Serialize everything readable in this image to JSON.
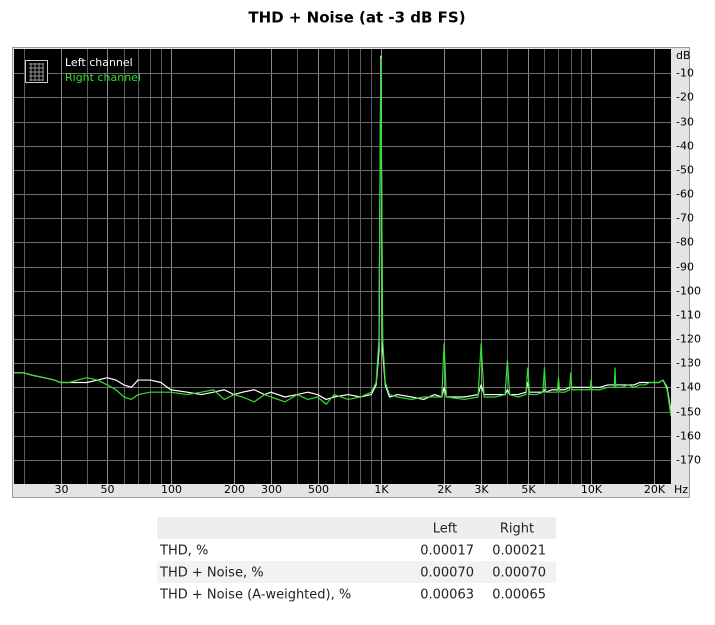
{
  "chart_data": {
    "type": "line",
    "title": "THD + Noise (at -3 dB FS)",
    "x_label": "Hz",
    "y_label": "dB",
    "log_x": true,
    "grid": true,
    "legend_position": "upper left",
    "xlim": [
      18,
      24000
    ],
    "ylim": [
      -180,
      0
    ],
    "xticks": [
      30,
      50,
      100,
      200,
      300,
      500,
      {
        "value": 1000,
        "label": "1K"
      },
      {
        "value": 2000,
        "label": "2K"
      },
      {
        "value": 3000,
        "label": "3K"
      },
      {
        "value": 5000,
        "label": "5K"
      },
      {
        "value": 10000,
        "label": "10K"
      },
      {
        "value": 20000,
        "label": "20K"
      }
    ],
    "xgrid_minor": [
      20,
      40,
      60,
      70,
      80,
      90,
      400,
      600,
      700,
      800,
      900,
      4000,
      6000,
      7000,
      8000,
      9000
    ],
    "yticks": [
      -10,
      -20,
      -30,
      -40,
      -50,
      -60,
      -70,
      -80,
      -90,
      -100,
      -110,
      -120,
      -130,
      -140,
      -150,
      -160,
      -170
    ],
    "x": [
      18,
      20,
      22,
      25,
      28,
      30,
      33,
      36,
      40,
      45,
      50,
      55,
      60,
      65,
      70,
      80,
      90,
      100,
      120,
      140,
      160,
      180,
      200,
      220,
      250,
      280,
      300,
      350,
      400,
      450,
      500,
      550,
      600,
      700,
      800,
      900,
      950,
      980,
      1000,
      1020,
      1050,
      1100,
      1200,
      1400,
      1600,
      1800,
      1950,
      2000,
      2050,
      2500,
      2900,
      3000,
      3100,
      3500,
      3900,
      4000,
      4100,
      4500,
      4900,
      5000,
      5100,
      5500,
      5900,
      6000,
      6100,
      6500,
      6900,
      7000,
      7100,
      7500,
      7900,
      8000,
      8100,
      9000,
      9900,
      10000,
      10100,
      11000,
      12000,
      12900,
      13000,
      13100,
      14000,
      15000,
      16000,
      17000,
      18000,
      19000,
      20000,
      21000,
      22000,
      23000,
      24000
    ],
    "series": [
      {
        "name": "Left channel",
        "color": "#ffffff",
        "values": [
          -134,
          -134,
          -135,
          -136,
          -137,
          -138,
          -138,
          -138,
          -138,
          -137,
          -136,
          -137,
          -139,
          -140,
          -137,
          -137,
          -138,
          -141,
          -142,
          -143,
          -142,
          -141,
          -143,
          -142,
          -141,
          -143,
          -142,
          -144,
          -143,
          -142,
          -143,
          -145,
          -144,
          -143,
          -144,
          -143,
          -139,
          -125,
          -3,
          -125,
          -139,
          -144,
          -143,
          -144,
          -145,
          -143,
          -144,
          -140,
          -144,
          -144,
          -143,
          -139,
          -143,
          -143,
          -143,
          -141,
          -143,
          -143,
          -142,
          -138,
          -142,
          -142,
          -142,
          -141,
          -142,
          -141,
          -141,
          -140,
          -141,
          -141,
          -140,
          -140,
          -140,
          -140,
          -140,
          -139,
          -140,
          -140,
          -139,
          -139,
          -137,
          -139,
          -139,
          -139,
          -139,
          -138,
          -138,
          -138,
          -138,
          -138,
          -137,
          -140,
          -150
        ]
      },
      {
        "name": "Right channel",
        "color": "#33dd33",
        "values": [
          -134,
          -134,
          -135,
          -136,
          -137,
          -138,
          -138,
          -137,
          -136,
          -137,
          -139,
          -141,
          -144,
          -145,
          -143,
          -142,
          -142,
          -142,
          -143,
          -142,
          -141,
          -145,
          -143,
          -144,
          -146,
          -143,
          -144,
          -146,
          -143,
          -145,
          -144,
          -147,
          -143,
          -145,
          -144,
          -142,
          -138,
          -120,
          -4,
          -120,
          -138,
          -143,
          -144,
          -145,
          -144,
          -144,
          -144,
          -122,
          -144,
          -145,
          -144,
          -122,
          -144,
          -144,
          -143,
          -129,
          -143,
          -144,
          -143,
          -132,
          -143,
          -143,
          -142,
          -132,
          -142,
          -142,
          -142,
          -136,
          -142,
          -142,
          -141,
          -134,
          -141,
          -141,
          -141,
          -137,
          -141,
          -141,
          -140,
          -140,
          -132,
          -140,
          -140,
          -139,
          -140,
          -139,
          -139,
          -138,
          -138,
          -138,
          -137,
          -141,
          -152
        ]
      }
    ]
  },
  "table": {
    "columns": [
      "Left",
      "Right"
    ],
    "rows": [
      {
        "label": "THD, %",
        "values": [
          "0.00017",
          "0.00021"
        ]
      },
      {
        "label": "THD + Noise, %",
        "values": [
          "0.00070",
          "0.00070"
        ]
      },
      {
        "label": "THD + Noise (A-weighted), %",
        "values": [
          "0.00063",
          "0.00065"
        ]
      }
    ]
  }
}
